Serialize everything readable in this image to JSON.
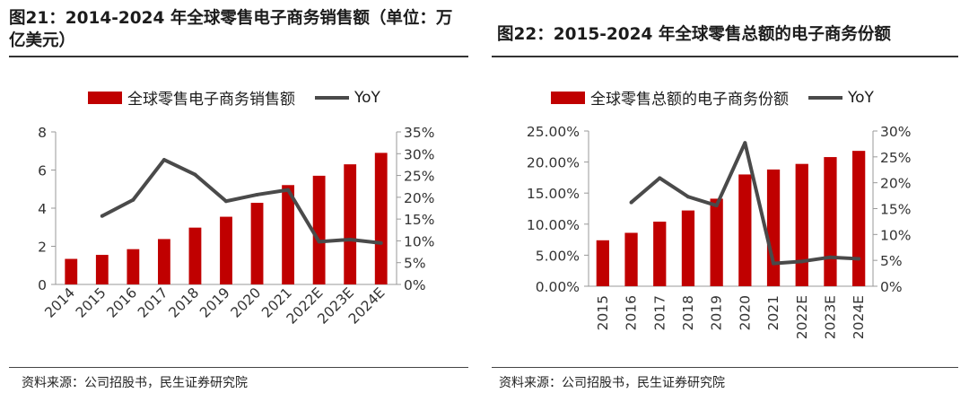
{
  "charts": {
    "left": {
      "title": "图21：2014-2024 年全球零售电子商务销售额（单位：万亿美元）",
      "legend_bar": "全球零售电子商务销售额",
      "legend_line": "YoY",
      "source": "资料来源：公司招股书，民生证券研究院"
    },
    "right": {
      "title": "图22：2015-2024 年全球零售总额的电子商务份额",
      "legend_bar": "全球零售总额的电子商务份额",
      "legend_line": "YoY",
      "source": "资料来源：公司招股书，民生证券研究院"
    }
  },
  "chart_data": [
    {
      "type": "bar",
      "title": "图21：2014-2024 年全球零售电子商务销售额（单位：万亿美元）",
      "categories": [
        "2014",
        "2015",
        "2016",
        "2017",
        "2018",
        "2019",
        "2020",
        "2021",
        "2022E",
        "2023E",
        "2024E"
      ],
      "series": [
        {
          "name": "全球零售电子商务销售额",
          "type": "bar",
          "axis": "left",
          "values": [
            1.34,
            1.55,
            1.85,
            2.38,
            2.98,
            3.55,
            4.28,
            5.21,
            5.7,
            6.3,
            6.9
          ]
        },
        {
          "name": "YoY",
          "type": "line",
          "axis": "right",
          "values": [
            null,
            15.7,
            19.4,
            28.6,
            25.2,
            19.1,
            20.6,
            21.7,
            9.8,
            10.3,
            9.5
          ]
        }
      ],
      "ylim": [
        0,
        8
      ],
      "yticks": [
        "0",
        "2",
        "4",
        "6",
        "8"
      ],
      "ylim_right": [
        0,
        35
      ],
      "yticks_right": [
        "0%",
        "5%",
        "10%",
        "15%",
        "20%",
        "25%",
        "30%",
        "35%"
      ],
      "colors": {
        "bar": "#c00000",
        "line": "#4a4a4a"
      },
      "legend": "top"
    },
    {
      "type": "bar",
      "title": "图22：2015-2024 年全球零售总额的电子商务份额",
      "categories": [
        "2015",
        "2016",
        "2017",
        "2018",
        "2019",
        "2020",
        "2021",
        "2022E",
        "2023E",
        "2024E"
      ],
      "series": [
        {
          "name": "全球零售总额的电子商务份额",
          "type": "bar",
          "axis": "left",
          "values": [
            7.4,
            8.6,
            10.4,
            12.2,
            14.1,
            18.0,
            18.8,
            19.7,
            20.8,
            21.8
          ]
        },
        {
          "name": "YoY",
          "type": "line",
          "axis": "right",
          "values": [
            null,
            16.2,
            20.9,
            17.3,
            15.6,
            27.7,
            4.4,
            4.8,
            5.6,
            5.3
          ]
        }
      ],
      "ylim": [
        0,
        25
      ],
      "yticks": [
        "0.00%",
        "5.00%",
        "10.00%",
        "15.00%",
        "20.00%",
        "25.00%"
      ],
      "ylim_right": [
        0,
        30
      ],
      "yticks_right": [
        "0%",
        "5%",
        "10%",
        "15%",
        "20%",
        "25%",
        "30%"
      ],
      "colors": {
        "bar": "#c00000",
        "line": "#4a4a4a"
      },
      "legend": "top"
    }
  ]
}
